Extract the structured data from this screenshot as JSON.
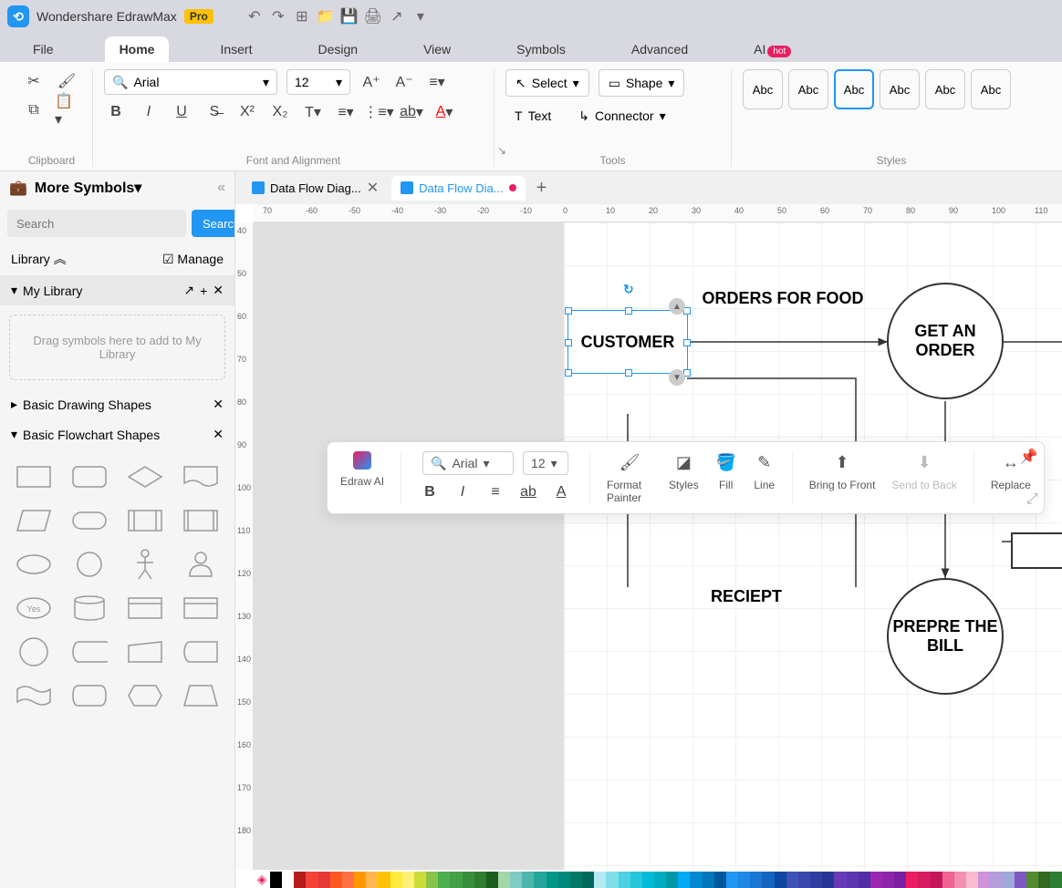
{
  "app": {
    "title": "Wondershare EdrawMax",
    "badge": "Pro"
  },
  "menu": {
    "items": [
      "File",
      "Home",
      "Insert",
      "Design",
      "View",
      "Symbols",
      "Advanced",
      "AI"
    ],
    "active": "Home",
    "hot_badge": "hot"
  },
  "ribbon": {
    "clipboard_label": "Clipboard",
    "font_name": "Arial",
    "font_size": "12",
    "font_label": "Font and Alignment",
    "select_label": "Select",
    "shape_label": "Shape",
    "text_label": "Text",
    "connector_label": "Connector",
    "tools_label": "Tools",
    "styles_label": "Styles",
    "style_sample": "Abc"
  },
  "sidebar": {
    "title": "More Symbols",
    "search_placeholder": "Search",
    "search_btn": "Search",
    "library_label": "Library",
    "manage_label": "Manage",
    "mylib_label": "My Library",
    "mylib_drop": "Drag symbols here to add to My Library",
    "basic_drawing": "Basic Drawing Shapes",
    "basic_flowchart": "Basic Flowchart Shapes"
  },
  "tabs": {
    "t1": "Data Flow Diag...",
    "t2": "Data Flow Dia..."
  },
  "ruler_h": [
    "70",
    "-60",
    "-50",
    "-40",
    "-30",
    "-20",
    "-10",
    "0",
    "10",
    "20",
    "30",
    "40",
    "50",
    "60",
    "70",
    "80",
    "90",
    "100",
    "110"
  ],
  "ruler_v": [
    "40",
    "50",
    "60",
    "70",
    "80",
    "90",
    "100",
    "110",
    "120",
    "130",
    "140",
    "150",
    "160",
    "170",
    "180"
  ],
  "diagram": {
    "customer": "CUSTOMER",
    "orders": "ORDERS FOR FOOD",
    "get_order": "GET AN ORDER",
    "receipt": "RECIEPT",
    "prepare": "PREPRE THE BILL"
  },
  "float_toolbar": {
    "edraw_ai": "Edraw AI",
    "font_name": "Arial",
    "font_size": "12",
    "format_painter": "Format Painter",
    "styles": "Styles",
    "fill": "Fill",
    "line": "Line",
    "bring_front": "Bring to Front",
    "send_back": "Send to Back",
    "replace": "Replace"
  },
  "palette_colors": [
    "#000000",
    "#ffffff",
    "#b71c1c",
    "#f44336",
    "#e53935",
    "#ff5722",
    "#ff7043",
    "#ff9800",
    "#ffb74d",
    "#ffc107",
    "#ffeb3b",
    "#fff176",
    "#cddc39",
    "#8bc34a",
    "#4caf50",
    "#43a047",
    "#388e3c",
    "#2e7d32",
    "#1b5e20",
    "#a5d6a7",
    "#80cbc4",
    "#4db6ac",
    "#26a69a",
    "#009688",
    "#00897b",
    "#00796b",
    "#00695c",
    "#b2ebf2",
    "#80deea",
    "#4dd0e1",
    "#26c6da",
    "#00bcd4",
    "#00acc1",
    "#0097a7",
    "#03a9f4",
    "#0288d1",
    "#0277bd",
    "#01579b",
    "#2196f3",
    "#1e88e5",
    "#1976d2",
    "#1565c0",
    "#0d47a1",
    "#3f51b5",
    "#3949ab",
    "#303f9f",
    "#283593",
    "#673ab7",
    "#5e35b1",
    "#512da8",
    "#9c27b0",
    "#8e24aa",
    "#7b1fa2",
    "#e91e63",
    "#d81b60",
    "#c2185b",
    "#f06292",
    "#f48fb1",
    "#f8bbd0",
    "#ce93d8",
    "#b39ddb",
    "#9fa8da",
    "#7e57c2",
    "#558b2f",
    "#33691e",
    "#2e7d32"
  ]
}
